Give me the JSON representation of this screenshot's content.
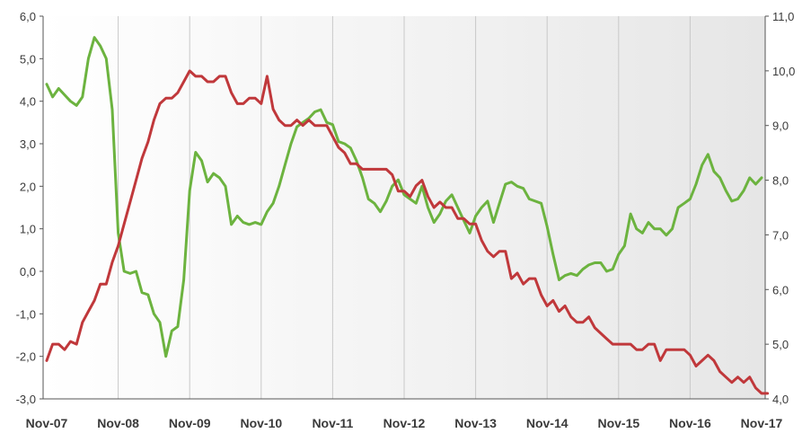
{
  "chart_data": {
    "type": "line",
    "grid": "vertical",
    "x_tick_labels": [
      "Nov-07",
      "Nov-08",
      "Nov-09",
      "Nov-10",
      "Nov-11",
      "Nov-12",
      "Nov-13",
      "Nov-14",
      "Nov-15",
      "Nov-16",
      "Nov-17"
    ],
    "y_left": {
      "range": [
        -3.0,
        6.0
      ],
      "ticks": [
        "-3,0",
        "-2,0",
        "-1,0",
        "0,0",
        "1,0",
        "2,0",
        "3,0",
        "4,0",
        "5,0",
        "6,0"
      ]
    },
    "y_right": {
      "range": [
        4.0,
        11.0
      ],
      "ticks": [
        "4,0",
        "5,0",
        "6,0",
        "7,0",
        "8,0",
        "9,0",
        "10,0",
        "11,0"
      ]
    },
    "series": [
      {
        "color": "#6cb33f",
        "axis": "left",
        "values": [
          4.4,
          4.1,
          4.3,
          4.15,
          4.0,
          3.9,
          4.1,
          5.0,
          5.5,
          5.3,
          5.0,
          3.8,
          0.9,
          0.0,
          -0.05,
          0.0,
          -0.5,
          -0.55,
          -1.0,
          -1.2,
          -2.0,
          -1.4,
          -1.3,
          -0.2,
          1.9,
          2.8,
          2.6,
          2.1,
          2.3,
          2.2,
          2.0,
          1.1,
          1.3,
          1.15,
          1.1,
          1.15,
          1.1,
          1.4,
          1.6,
          2.0,
          2.5,
          3.0,
          3.4,
          3.5,
          3.6,
          3.75,
          3.8,
          3.5,
          3.45,
          3.05,
          3.0,
          2.9,
          2.6,
          2.2,
          1.7,
          1.6,
          1.4,
          1.65,
          2.0,
          2.15,
          1.8,
          1.7,
          1.6,
          2.0,
          1.5,
          1.15,
          1.35,
          1.65,
          1.8,
          1.5,
          1.2,
          0.9,
          1.3,
          1.5,
          1.65,
          1.15,
          1.6,
          2.05,
          2.1,
          2.0,
          1.95,
          1.7,
          1.65,
          1.6,
          1.05,
          0.4,
          -0.2,
          -0.1,
          -0.05,
          -0.1,
          0.05,
          0.15,
          0.2,
          0.2,
          0.0,
          0.05,
          0.4,
          0.6,
          1.35,
          1.0,
          0.9,
          1.15,
          1.0,
          1.0,
          0.85,
          1.0,
          1.5,
          1.6,
          1.7,
          2.05,
          2.5,
          2.75,
          2.35,
          2.2,
          1.9,
          1.65,
          1.7,
          1.9,
          2.2,
          2.05,
          2.2
        ]
      },
      {
        "color": "#c0383b",
        "axis": "right",
        "values": [
          4.7,
          5.0,
          5.0,
          4.9,
          5.05,
          5.0,
          5.4,
          5.6,
          5.8,
          6.1,
          6.1,
          6.5,
          6.8,
          7.2,
          7.6,
          8.0,
          8.4,
          8.7,
          9.1,
          9.4,
          9.5,
          9.5,
          9.6,
          9.8,
          10.0,
          9.9,
          9.9,
          9.8,
          9.8,
          9.9,
          9.9,
          9.6,
          9.4,
          9.4,
          9.5,
          9.5,
          9.4,
          9.9,
          9.3,
          9.1,
          9.0,
          9.0,
          9.1,
          9.0,
          9.1,
          9.0,
          9.0,
          9.0,
          8.8,
          8.6,
          8.5,
          8.3,
          8.3,
          8.2,
          8.2,
          8.2,
          8.2,
          8.2,
          8.1,
          7.8,
          7.8,
          7.7,
          7.9,
          8.0,
          7.7,
          7.5,
          7.6,
          7.5,
          7.5,
          7.3,
          7.3,
          7.2,
          7.2,
          6.9,
          6.7,
          6.6,
          6.7,
          6.7,
          6.2,
          6.3,
          6.1,
          6.2,
          6.2,
          5.9,
          5.7,
          5.8,
          5.6,
          5.7,
          5.5,
          5.4,
          5.4,
          5.5,
          5.3,
          5.2,
          5.1,
          5.0,
          5.0,
          5.0,
          5.0,
          4.9,
          4.9,
          5.0,
          5.0,
          4.7,
          4.9,
          4.9,
          4.9,
          4.9,
          4.8,
          4.6,
          4.7,
          4.8,
          4.7,
          4.5,
          4.4,
          4.3,
          4.4,
          4.3,
          4.4,
          4.2,
          4.1,
          4.1
        ]
      }
    ]
  }
}
